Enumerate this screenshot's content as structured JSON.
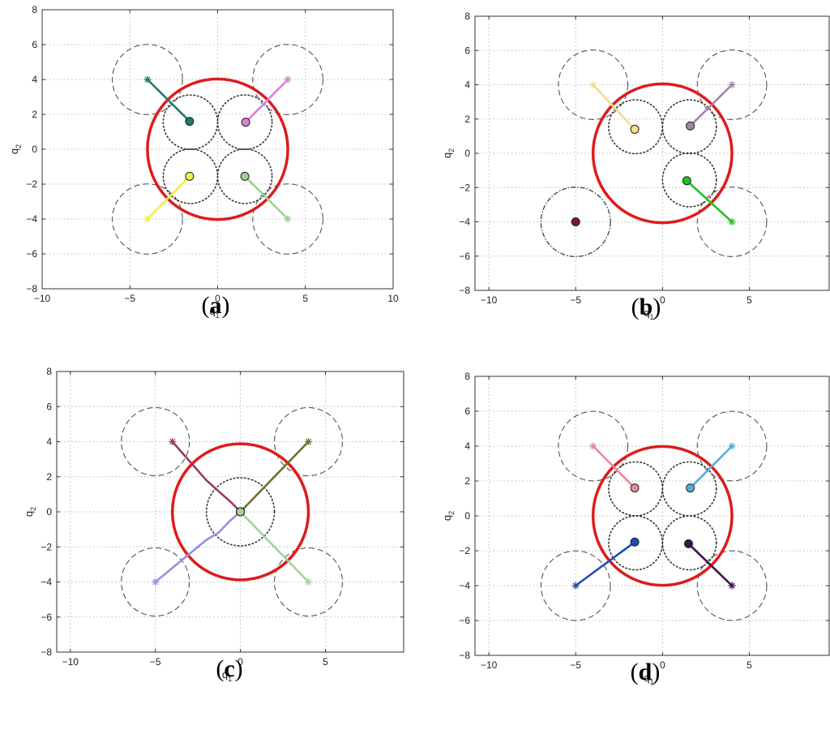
{
  "chart_data": [
    {
      "type": "scatter",
      "caption": "(a)",
      "caption_letter": "a",
      "xlabel": "q",
      "xlabel_sub": "1",
      "ylabel": "q",
      "ylabel_sub": "2",
      "xlim": [
        -10,
        10
      ],
      "ylim": [
        -8,
        8
      ],
      "xticks": [
        -10,
        -5,
        0,
        5,
        10
      ],
      "yticks": [
        -8,
        -6,
        -4,
        -2,
        0,
        2,
        4,
        6,
        8
      ],
      "grid": true,
      "red_circle": {
        "cx": 0,
        "cy": 0,
        "r": 4,
        "color": "#dd1c1c"
      },
      "dashed_circles": [
        {
          "cx": -4,
          "cy": 4,
          "r": 2
        },
        {
          "cx": 4,
          "cy": 4,
          "r": 2
        },
        {
          "cx": -4,
          "cy": -4,
          "r": 2
        },
        {
          "cx": 4,
          "cy": -4,
          "r": 2
        }
      ],
      "dotted_circles": [
        {
          "cx": -1.55,
          "cy": 1.55,
          "r": 1.55
        },
        {
          "cx": 1.55,
          "cy": 1.55,
          "r": 1.55
        },
        {
          "cx": -1.55,
          "cy": -1.55,
          "r": 1.55
        },
        {
          "cx": 1.55,
          "cy": -1.55,
          "r": 1.55
        }
      ],
      "dashdot_circles": [],
      "series": [
        {
          "color": "#1f7a6a",
          "start": [
            -4,
            4
          ],
          "end": [
            -1.6,
            1.6
          ],
          "path": [
            [
              -4,
              4
            ],
            [
              -1.6,
              1.6
            ]
          ]
        },
        {
          "color": "#d883d8",
          "start": [
            4,
            4
          ],
          "end": [
            1.6,
            1.55
          ],
          "path": [
            [
              4,
              4
            ],
            [
              1.6,
              1.55
            ]
          ]
        },
        {
          "color": "#f2ef4a",
          "start": [
            -4,
            -4
          ],
          "end": [
            -1.6,
            -1.55
          ],
          "path": [
            [
              -4,
              -4
            ],
            [
              -1.6,
              -1.55
            ]
          ]
        },
        {
          "color": "#9fcf96",
          "start": [
            4,
            -4
          ],
          "end": [
            1.55,
            -1.55
          ],
          "path": [
            [
              4,
              -4
            ],
            [
              1.55,
              -1.55
            ]
          ]
        }
      ],
      "lone_points": []
    },
    {
      "type": "scatter",
      "caption": "(b)",
      "caption_letter": "b",
      "xlabel": "q",
      "xlabel_sub": "1",
      "ylabel": "q",
      "ylabel_sub": "2",
      "xlim": [
        -10.8,
        9.6
      ],
      "ylim": [
        -8,
        8
      ],
      "xticks": [
        -10,
        -5,
        0,
        5
      ],
      "yticks": [
        -8,
        -6,
        -4,
        -2,
        0,
        2,
        4,
        6,
        8
      ],
      "grid": true,
      "red_circle": {
        "cx": 0,
        "cy": 0,
        "r": 4,
        "color": "#dd1c1c"
      },
      "dashed_circles": [
        {
          "cx": -4,
          "cy": 4,
          "r": 2
        },
        {
          "cx": 4,
          "cy": 4,
          "r": 2
        },
        {
          "cx": 4,
          "cy": -4,
          "r": 2
        }
      ],
      "dotted_circles": [
        {
          "cx": -1.55,
          "cy": 1.55,
          "r": 1.55
        },
        {
          "cx": 1.55,
          "cy": 1.55,
          "r": 1.55
        },
        {
          "cx": 1.55,
          "cy": -1.55,
          "r": 1.55
        }
      ],
      "dashdot_circles": [
        {
          "cx": -5,
          "cy": -4,
          "r": 2
        }
      ],
      "series": [
        {
          "color": "#efdf8a",
          "start": [
            -4,
            4
          ],
          "end": [
            -1.6,
            1.4
          ],
          "path": [
            [
              -4,
              4
            ],
            [
              -1.6,
              1.4
            ]
          ]
        },
        {
          "color": "#9d88a6",
          "start": [
            4,
            4
          ],
          "end": [
            1.6,
            1.6
          ],
          "path": [
            [
              4,
              4
            ],
            [
              1.6,
              1.6
            ]
          ]
        },
        {
          "color": "#22c422",
          "start": [
            4,
            -4
          ],
          "end": [
            1.4,
            -1.6
          ],
          "path": [
            [
              4,
              -4
            ],
            [
              1.4,
              -1.6
            ]
          ]
        }
      ],
      "lone_points": [
        {
          "color": "#7a1a24",
          "x": -5,
          "y": -4
        }
      ]
    },
    {
      "type": "scatter",
      "caption": "(c)",
      "caption_letter": "c",
      "xlabel": "q",
      "xlabel_sub": "1",
      "ylabel": "q",
      "ylabel_sub": "2",
      "xlim": [
        -10.8,
        9.6
      ],
      "ylim": [
        -8,
        8
      ],
      "xticks": [
        -10,
        -5,
        0,
        5
      ],
      "yticks": [
        -8,
        -6,
        -4,
        -2,
        0,
        2,
        4,
        6,
        8
      ],
      "grid": true,
      "red_circle": {
        "cx": 0,
        "cy": 0,
        "r": 4,
        "color": "#dd1c1c"
      },
      "dashed_circles": [
        {
          "cx": -5,
          "cy": 4,
          "r": 2
        },
        {
          "cx": 4,
          "cy": 4,
          "r": 2
        },
        {
          "cx": -5,
          "cy": -4,
          "r": 2
        },
        {
          "cx": 4,
          "cy": -4,
          "r": 2
        }
      ],
      "dotted_circles": [
        {
          "cx": 0,
          "cy": 0,
          "r": 2
        }
      ],
      "dashdot_circles": [],
      "series": [
        {
          "color": "#963a60",
          "start": [
            -4,
            4
          ],
          "end": [
            0,
            0
          ],
          "path": [
            [
              -4,
              4
            ],
            [
              -2,
              1.8
            ],
            [
              -1.2,
              1.1
            ],
            [
              -0.5,
              0.5
            ],
            [
              0,
              0
            ]
          ]
        },
        {
          "color": "#6e6e2e",
          "start": [
            4,
            4
          ],
          "end": [
            0,
            0
          ],
          "path": [
            [
              4,
              4
            ],
            [
              0,
              0
            ]
          ]
        },
        {
          "color": "#9a8ce0",
          "start": [
            -5,
            -4
          ],
          "end": [
            0,
            0
          ],
          "path": [
            [
              -5,
              -4
            ],
            [
              -2,
              -1.6
            ],
            [
              -1.3,
              -1.2
            ],
            [
              -0.6,
              -0.5
            ],
            [
              0,
              0
            ]
          ]
        },
        {
          "color": "#9fd49a",
          "start": [
            4,
            -4
          ],
          "end": [
            0,
            0
          ],
          "path": [
            [
              4,
              -4
            ],
            [
              0,
              0
            ]
          ]
        }
      ],
      "lone_points": []
    },
    {
      "type": "scatter",
      "caption": "(d)",
      "caption_letter": "d",
      "xlabel": "q",
      "xlabel_sub": "1",
      "ylabel": "q",
      "ylabel_sub": "2",
      "xlim": [
        -10.8,
        9.6
      ],
      "ylim": [
        -8,
        8
      ],
      "xticks": [
        -10,
        -5,
        0,
        5
      ],
      "yticks": [
        -8,
        -6,
        -4,
        -2,
        0,
        2,
        4,
        6,
        8
      ],
      "grid": true,
      "red_circle": {
        "cx": 0,
        "cy": 0,
        "r": 4,
        "color": "#dd1c1c"
      },
      "dashed_circles": [
        {
          "cx": -4,
          "cy": 4,
          "r": 2
        },
        {
          "cx": 4,
          "cy": 4,
          "r": 2
        },
        {
          "cx": -5,
          "cy": -4,
          "r": 2
        },
        {
          "cx": 4,
          "cy": -4,
          "r": 2
        }
      ],
      "dotted_circles": [
        {
          "cx": -1.55,
          "cy": 1.55,
          "r": 1.55
        },
        {
          "cx": 1.55,
          "cy": 1.55,
          "r": 1.55
        },
        {
          "cx": -1.55,
          "cy": -1.55,
          "r": 1.55
        },
        {
          "cx": 1.55,
          "cy": -1.55,
          "r": 1.55
        }
      ],
      "dashdot_circles": [],
      "series": [
        {
          "color": "#e4899b",
          "start": [
            -4,
            4
          ],
          "end": [
            -1.6,
            1.6
          ],
          "path": [
            [
              -4,
              4
            ],
            [
              -1.6,
              1.6
            ]
          ]
        },
        {
          "color": "#56acd9",
          "start": [
            4,
            4
          ],
          "end": [
            1.6,
            1.6
          ],
          "path": [
            [
              4,
              4
            ],
            [
              1.6,
              1.6
            ]
          ]
        },
        {
          "color": "#1c4fb0",
          "start": [
            -5,
            -4
          ],
          "end": [
            -1.6,
            -1.5
          ],
          "path": [
            [
              -5,
              -4
            ],
            [
              -1.6,
              -1.5
            ]
          ]
        },
        {
          "color": "#3d1050",
          "start": [
            4,
            -4
          ],
          "end": [
            1.5,
            -1.6
          ],
          "path": [
            [
              4,
              -4
            ],
            [
              1.5,
              -1.6
            ]
          ]
        }
      ],
      "lone_points": []
    }
  ]
}
